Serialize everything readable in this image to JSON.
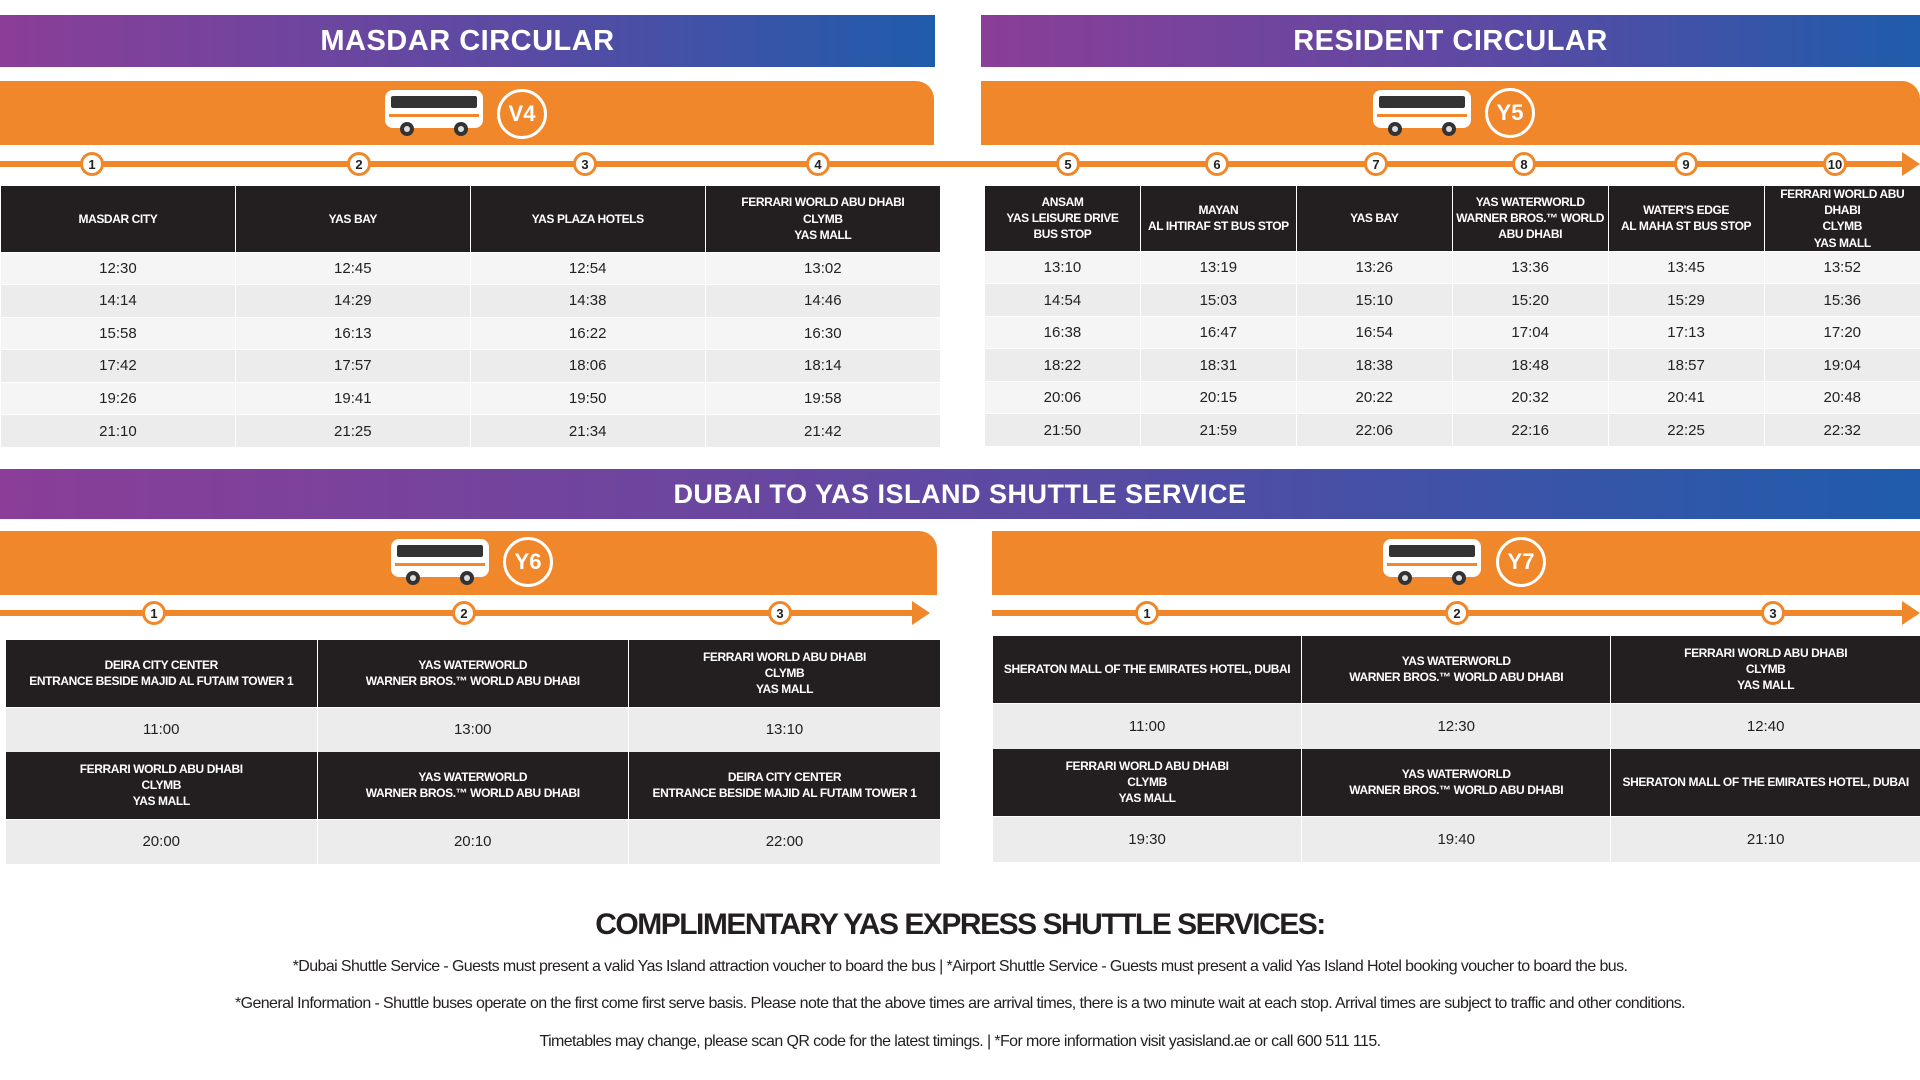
{
  "colors": {
    "gradient_start": "#8a3e98",
    "gradient_end": "#1f5cab",
    "orange": "#f0872b",
    "header_dark": "#231f20"
  },
  "masdar": {
    "title": "MASDAR CIRCULAR",
    "route": "V4",
    "icon": "bus-icon",
    "stops": [
      {
        "num": "1",
        "name": "MASDAR CITY"
      },
      {
        "num": "2",
        "name": "YAS BAY"
      },
      {
        "num": "3",
        "name": "YAS PLAZA HOTELS"
      },
      {
        "num": "4",
        "name": "FERRARI WORLD ABU DHABI\nCLYMB\nYAS MALL"
      }
    ],
    "times": [
      [
        "12:30",
        "12:45",
        "12:54",
        "13:02"
      ],
      [
        "14:14",
        "14:29",
        "14:38",
        "14:46"
      ],
      [
        "15:58",
        "16:13",
        "16:22",
        "16:30"
      ],
      [
        "17:42",
        "17:57",
        "18:06",
        "18:14"
      ],
      [
        "19:26",
        "19:41",
        "19:50",
        "19:58"
      ],
      [
        "21:10",
        "21:25",
        "21:34",
        "21:42"
      ]
    ]
  },
  "resident": {
    "title": "RESIDENT CIRCULAR",
    "route": "Y5",
    "icon": "bus-icon",
    "stops": [
      {
        "num": "5",
        "name": "ANSAM\nYAS LEISURE DRIVE\nBUS STOP"
      },
      {
        "num": "6",
        "name": "MAYAN\nAL IHTIRAF ST BUS STOP"
      },
      {
        "num": "7",
        "name": "YAS BAY"
      },
      {
        "num": "8",
        "name": "YAS WATERWORLD\nWARNER BROS.™ WORLD\nABU DHABI"
      },
      {
        "num": "9",
        "name": "WATER'S EDGE\nAL MAHA ST BUS STOP"
      },
      {
        "num": "10",
        "name": "FERRARI WORLD ABU DHABI\nCLYMB\nYAS MALL"
      }
    ],
    "times": [
      [
        "13:10",
        "13:19",
        "13:26",
        "13:36",
        "13:45",
        "13:52"
      ],
      [
        "14:54",
        "15:03",
        "15:10",
        "15:20",
        "15:29",
        "15:36"
      ],
      [
        "16:38",
        "16:47",
        "16:54",
        "17:04",
        "17:13",
        "17:20"
      ],
      [
        "18:22",
        "18:31",
        "18:38",
        "18:48",
        "18:57",
        "19:04"
      ],
      [
        "20:06",
        "20:15",
        "20:22",
        "20:32",
        "20:41",
        "20:48"
      ],
      [
        "21:50",
        "21:59",
        "22:06",
        "22:16",
        "22:25",
        "22:32"
      ]
    ]
  },
  "dubai": {
    "title": "DUBAI TO YAS ISLAND SHUTTLE SERVICE",
    "y6": {
      "route": "Y6",
      "stop_nums": [
        "1",
        "2",
        "3"
      ],
      "outbound": {
        "stops": [
          "DEIRA CITY CENTER\nENTRANCE BESIDE MAJID AL FUTAIM TOWER 1",
          "YAS WATERWORLD\nWARNER BROS.™ WORLD ABU DHABI",
          "FERRARI WORLD ABU DHABI\nCLYMB\nYAS MALL"
        ],
        "times": [
          "11:00",
          "13:00",
          "13:10"
        ]
      },
      "return": {
        "stops": [
          "FERRARI WORLD ABU DHABI\nCLYMB\nYAS MALL",
          "YAS WATERWORLD\nWARNER BROS.™ WORLD ABU DHABI",
          "DEIRA CITY CENTER\nENTRANCE BESIDE MAJID AL FUTAIM TOWER 1"
        ],
        "times": [
          "20:00",
          "20:10",
          "22:00"
        ]
      }
    },
    "y7": {
      "route": "Y7",
      "stop_nums": [
        "1",
        "2",
        "3"
      ],
      "outbound": {
        "stops": [
          "SHERATON MALL OF THE EMIRATES HOTEL, DUBAI",
          "YAS WATERWORLD\nWARNER BROS.™ WORLD ABU DHABI",
          "FERRARI WORLD ABU DHABI\nCLYMB\nYAS MALL"
        ],
        "times": [
          "11:00",
          "12:30",
          "12:40"
        ]
      },
      "return": {
        "stops": [
          "FERRARI WORLD ABU DHABI\nCLYMB\nYAS MALL",
          "YAS WATERWORLD\nWARNER BROS.™ WORLD ABU DHABI",
          "SHERATON MALL OF THE EMIRATES HOTEL, DUBAI"
        ],
        "times": [
          "19:30",
          "19:40",
          "21:10"
        ]
      }
    }
  },
  "footer": {
    "heading": "COMPLIMENTARY YAS EXPRESS SHUTTLE SERVICES:",
    "line1": "*Dubai Shuttle Service - Guests must present a valid Yas Island attraction voucher to board the bus  |  *Airport Shuttle Service - Guests must present a valid Yas Island Hotel booking voucher to board the bus.",
    "line2": "*General Information - Shuttle buses operate on the first come first serve basis. Please note that the above times are arrival times, there is a two minute wait at each stop. Arrival times are subject to traffic and other conditions.",
    "line3": "Timetables may change, please scan QR code for the latest timings.  |  *For more information visit yasisland.ae or call 600 511 115."
  }
}
